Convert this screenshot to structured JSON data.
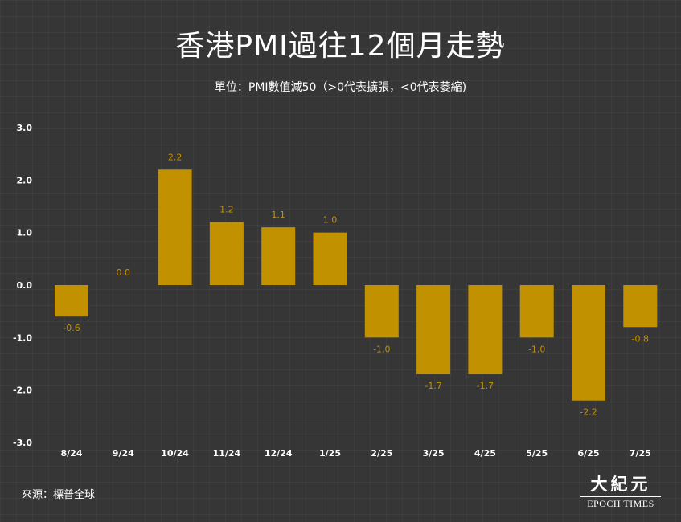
{
  "title": "香港PMI過往12個月走勢",
  "subtitle": "單位：PMI數值減50（>0代表擴張，<0代表萎縮)",
  "source": "來源：標普全球",
  "logo": {
    "chinese": "大紀元",
    "english": "EPOCH TIMES"
  },
  "colors": {
    "bar": "#c29100",
    "bar_label": "#c29100",
    "axis_text": "#ffffff",
    "background": "#363636"
  },
  "chart_data": {
    "type": "bar",
    "categories": [
      "8/24",
      "9/24",
      "10/24",
      "11/24",
      "12/24",
      "1/25",
      "2/25",
      "3/25",
      "4/25",
      "5/25",
      "6/25",
      "7/25"
    ],
    "values": [
      -0.6,
      0.0,
      2.2,
      1.2,
      1.1,
      1.0,
      -1.0,
      -1.7,
      -1.7,
      -1.0,
      -2.2,
      -0.8
    ],
    "value_labels": [
      "-0.6",
      "0.0",
      "2.2",
      "1.2",
      "1.1",
      "1.0",
      "-1.0",
      "-1.7",
      "-1.7",
      "-1.0",
      "-2.2",
      "-0.8"
    ],
    "y_ticks": [
      "3.0",
      "2.0",
      "1.0",
      "0.0",
      "-1.0",
      "-2.0",
      "-3.0"
    ],
    "y_tick_values": [
      3,
      2,
      1,
      0,
      -1,
      -2,
      -3
    ],
    "ylim": [
      -3,
      3
    ],
    "grid": false,
    "legend": "none"
  }
}
